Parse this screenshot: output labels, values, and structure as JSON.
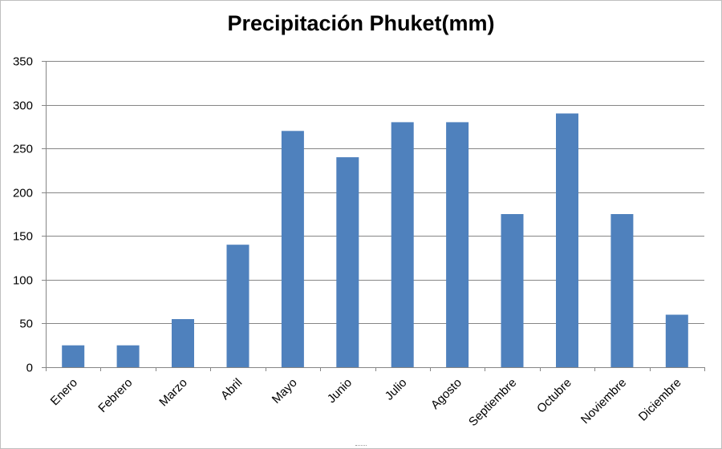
{
  "chart_data": {
    "type": "bar",
    "title": "Precipitación Phuket(mm)",
    "xlabel": "",
    "ylabel": "",
    "categories": [
      "Enero",
      "Febrero",
      "Marzo",
      "Abril",
      "Mayo",
      "Junio",
      "Julio",
      "Agosto",
      "Septiembre",
      "Octubre",
      "Noviembre",
      "Diciembre"
    ],
    "values": [
      25,
      25,
      55,
      140,
      270,
      240,
      280,
      280,
      175,
      290,
      175,
      60
    ],
    "ylim": [
      0,
      350
    ],
    "yticks": [
      0,
      50,
      100,
      150,
      200,
      250,
      300,
      350
    ],
    "grid": true,
    "legend": "none",
    "colors": {
      "bar": "#4f81bd",
      "grid": "#868686",
      "axis": "#868686",
      "text": "#000000"
    }
  }
}
